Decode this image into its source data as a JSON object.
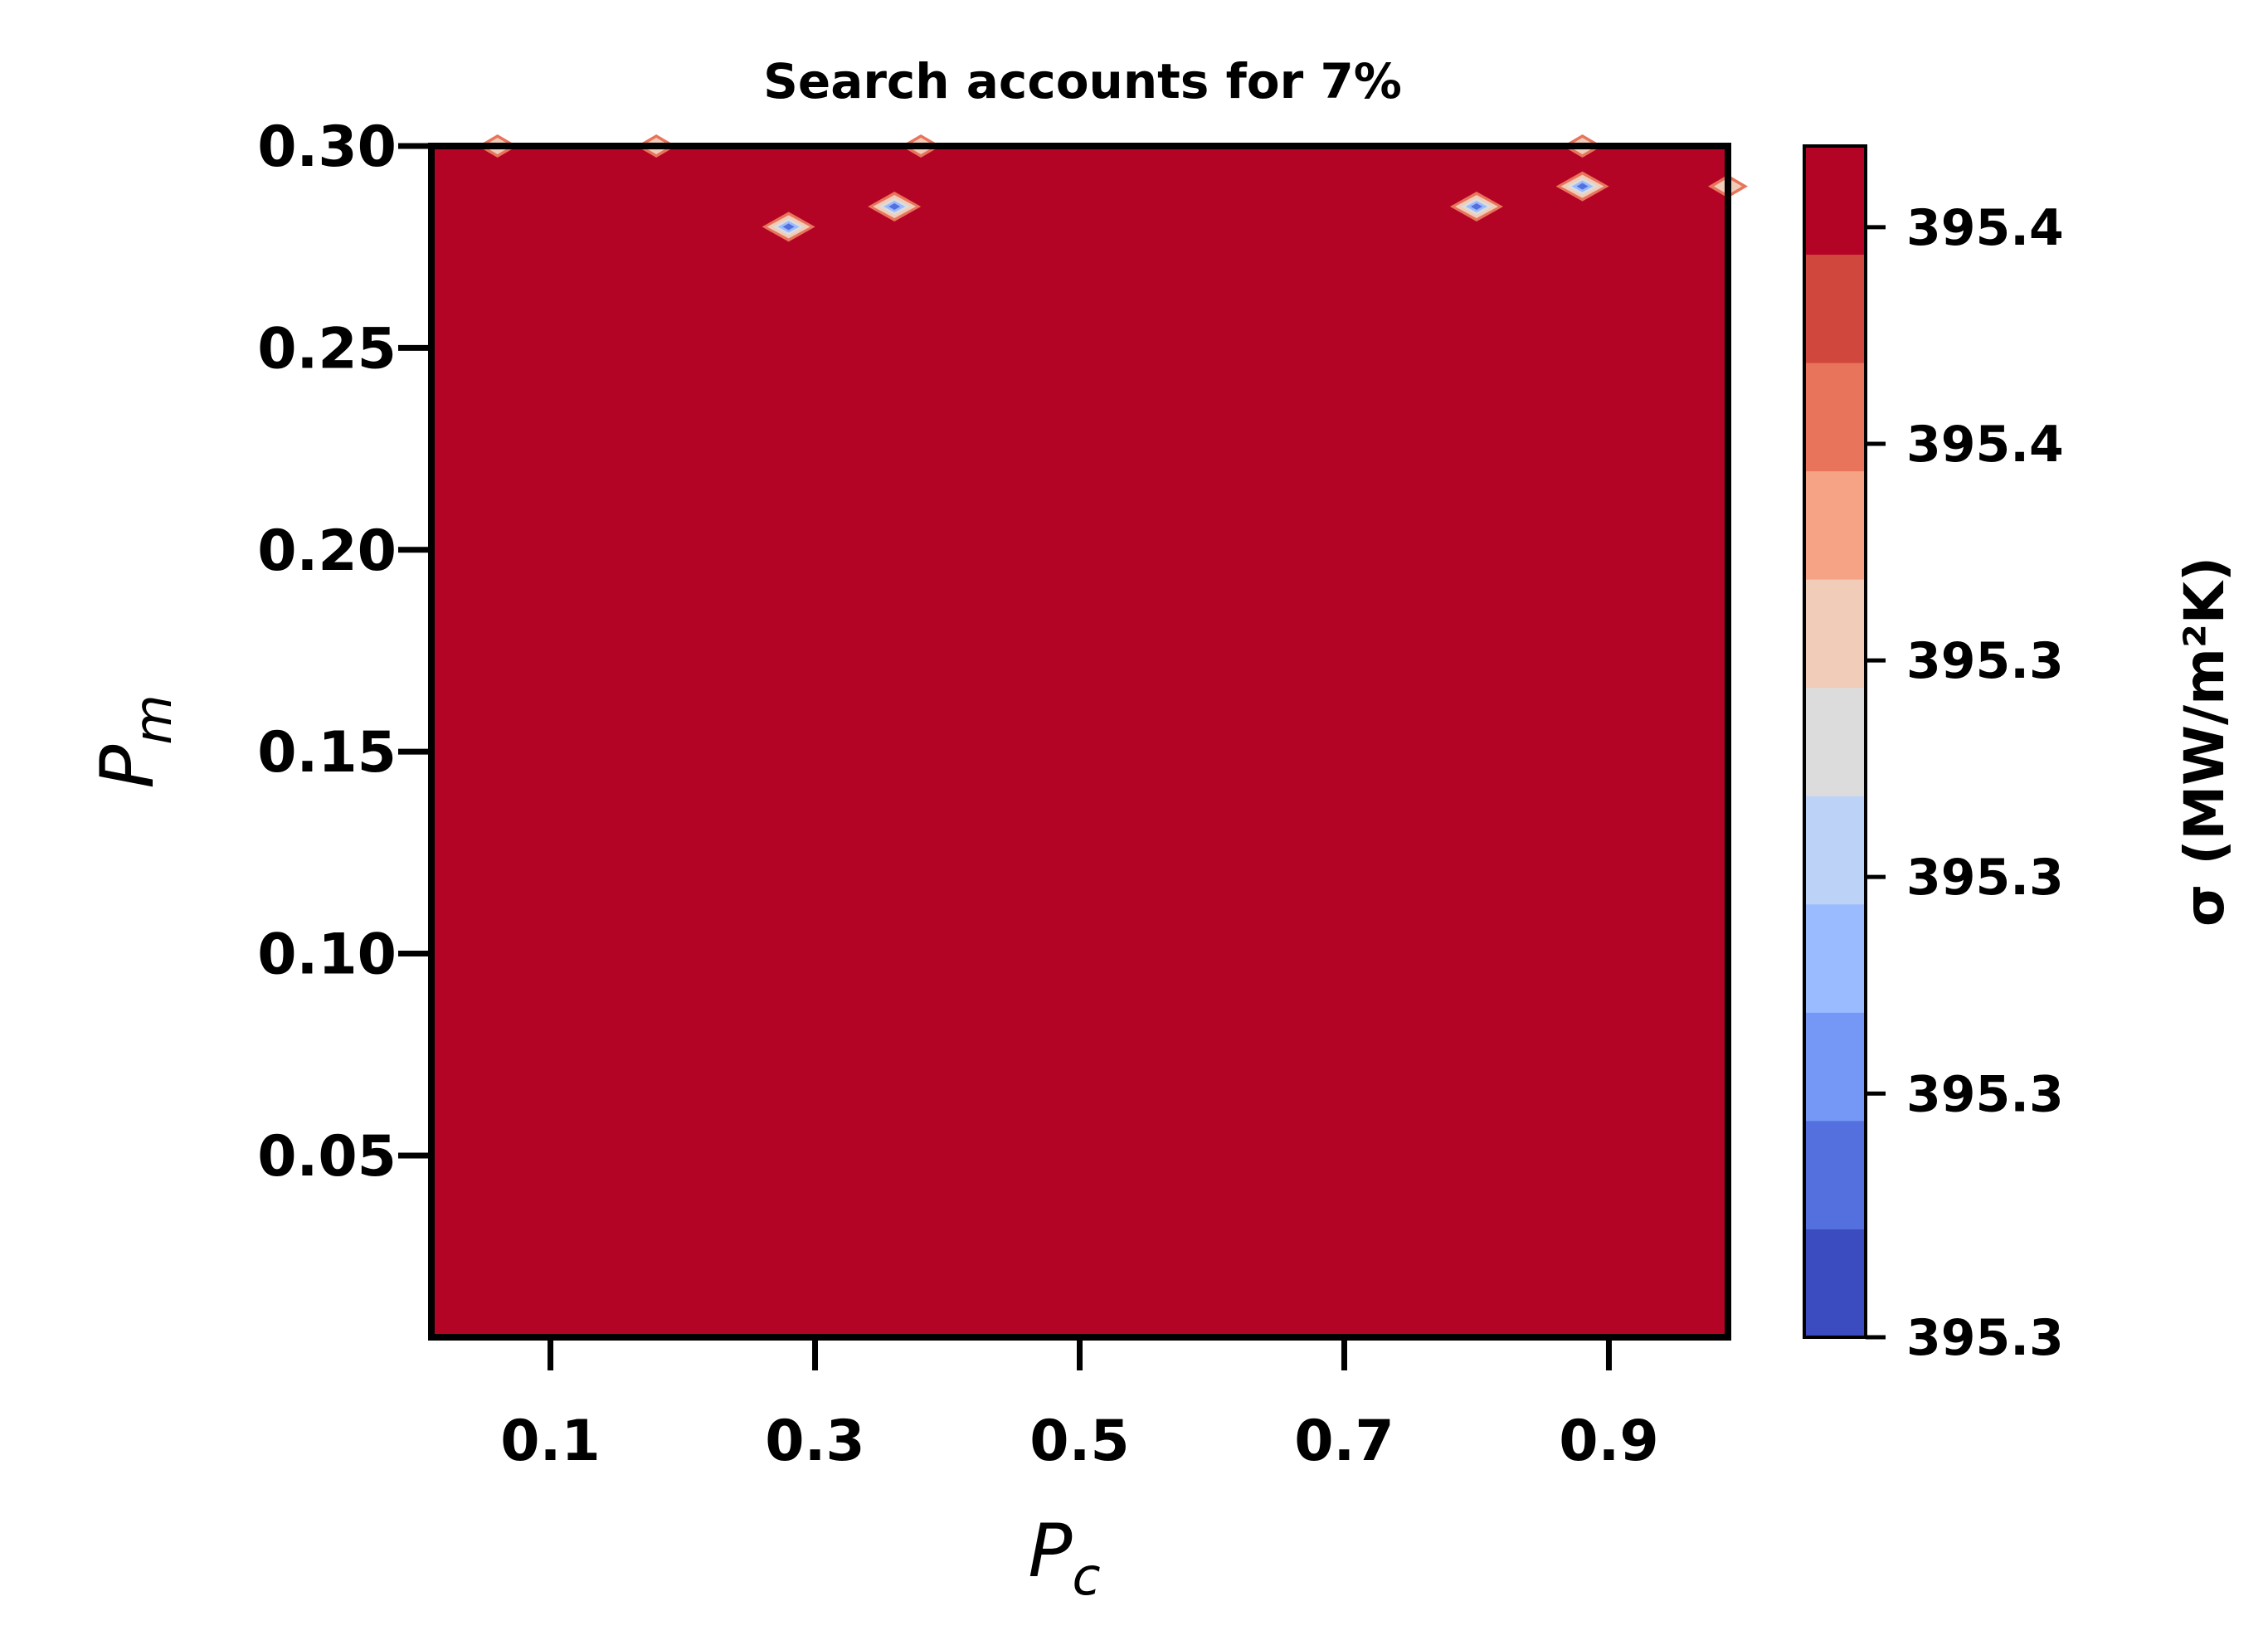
{
  "chart_data": {
    "type": "heatmap",
    "subtype": "filled-contour",
    "title": "Search accounts for 7%",
    "xlabel": "P_c",
    "ylabel": "P_m",
    "xlabel_parts": {
      "base": "P",
      "sub": "c"
    },
    "ylabel_parts": {
      "base": "P",
      "sub": "m"
    },
    "xlim": [
      0.01,
      0.99
    ],
    "ylim": [
      0.005,
      0.3
    ],
    "x_ticks": [
      0.1,
      0.3,
      0.5,
      0.7,
      0.9
    ],
    "x_tick_labels": [
      "0.1",
      "0.3",
      "0.5",
      "0.7",
      "0.9"
    ],
    "y_ticks": [
      0.05,
      0.1,
      0.15,
      0.2,
      0.25,
      0.3
    ],
    "y_tick_labels": [
      "0.05",
      "0.10",
      "0.15",
      "0.20",
      "0.25",
      "0.30"
    ],
    "background_value": "max",
    "background_color": "#b40426",
    "anomalies": [
      {
        "x": 0.06,
        "y": 0.3,
        "level": "high"
      },
      {
        "x": 0.18,
        "y": 0.3,
        "level": "high"
      },
      {
        "x": 0.38,
        "y": 0.3,
        "level": "high"
      },
      {
        "x": 0.28,
        "y": 0.28,
        "level": "low"
      },
      {
        "x": 0.36,
        "y": 0.285,
        "level": "low"
      },
      {
        "x": 0.8,
        "y": 0.285,
        "level": "low"
      },
      {
        "x": 0.88,
        "y": 0.29,
        "level": "low"
      },
      {
        "x": 0.88,
        "y": 0.3,
        "level": "high"
      },
      {
        "x": 0.99,
        "y": 0.29,
        "level": "high"
      }
    ],
    "colorbar": {
      "label": "σ (MW/m²K)",
      "colormap": "coolwarm",
      "levels": 11,
      "colors": [
        "#3b4cc0",
        "#5470de",
        "#7597f6",
        "#9abbff",
        "#bcd2f7",
        "#dddcdc",
        "#f1ccb8",
        "#f6a385",
        "#e7745b",
        "#d0473d",
        "#b40426"
      ],
      "tick_labels": [
        "395.3",
        "395.3",
        "395.3",
        "395.3",
        "395.4",
        "395.4"
      ],
      "tick_levels": [
        0,
        2.25,
        4.25,
        6.25,
        8.25,
        10.25
      ]
    }
  }
}
